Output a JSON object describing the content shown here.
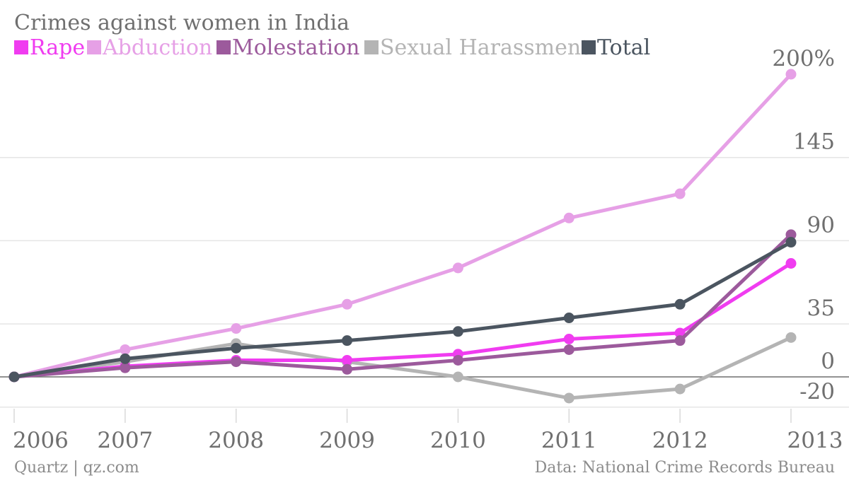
{
  "chart_data": {
    "type": "line",
    "title": "Crimes against women in India",
    "x": [
      "2006",
      "2007",
      "2008",
      "2009",
      "2010",
      "2011",
      "2012",
      "2013"
    ],
    "y_ticks": [
      {
        "value": 200,
        "label": "200%"
      },
      {
        "value": 145,
        "label": "145"
      },
      {
        "value": 90,
        "label": "90"
      },
      {
        "value": 35,
        "label": "35"
      },
      {
        "value": 0,
        "label": "0"
      },
      {
        "value": -20,
        "label": "-20"
      }
    ],
    "ylim": [
      -20,
      200
    ],
    "grid": true,
    "legend_position": "top-left",
    "series": [
      {
        "name": "Rape",
        "color": "#f03cf0",
        "values": [
          0,
          7,
          11,
          11,
          15,
          25,
          29,
          75
        ]
      },
      {
        "name": "Abduction",
        "color": "#e6a0e6",
        "values": [
          0,
          18,
          32,
          48,
          72,
          105,
          121,
          200
        ]
      },
      {
        "name": "Molestation",
        "color": "#9c5a9c",
        "values": [
          0,
          6,
          10,
          5,
          11,
          18,
          24,
          94
        ]
      },
      {
        "name": "Sexual Harassment",
        "color": "#b4b4b4",
        "values": [
          0,
          10,
          22,
          10,
          0,
          -14,
          -8,
          26
        ]
      },
      {
        "name": "Total",
        "color": "#4b5560",
        "values": [
          0,
          12,
          19,
          24,
          30,
          39,
          48,
          89
        ]
      }
    ]
  },
  "footer": {
    "source_left": "Quartz | qz.com",
    "source_right": "Data: National Crime Records Bureau"
  }
}
